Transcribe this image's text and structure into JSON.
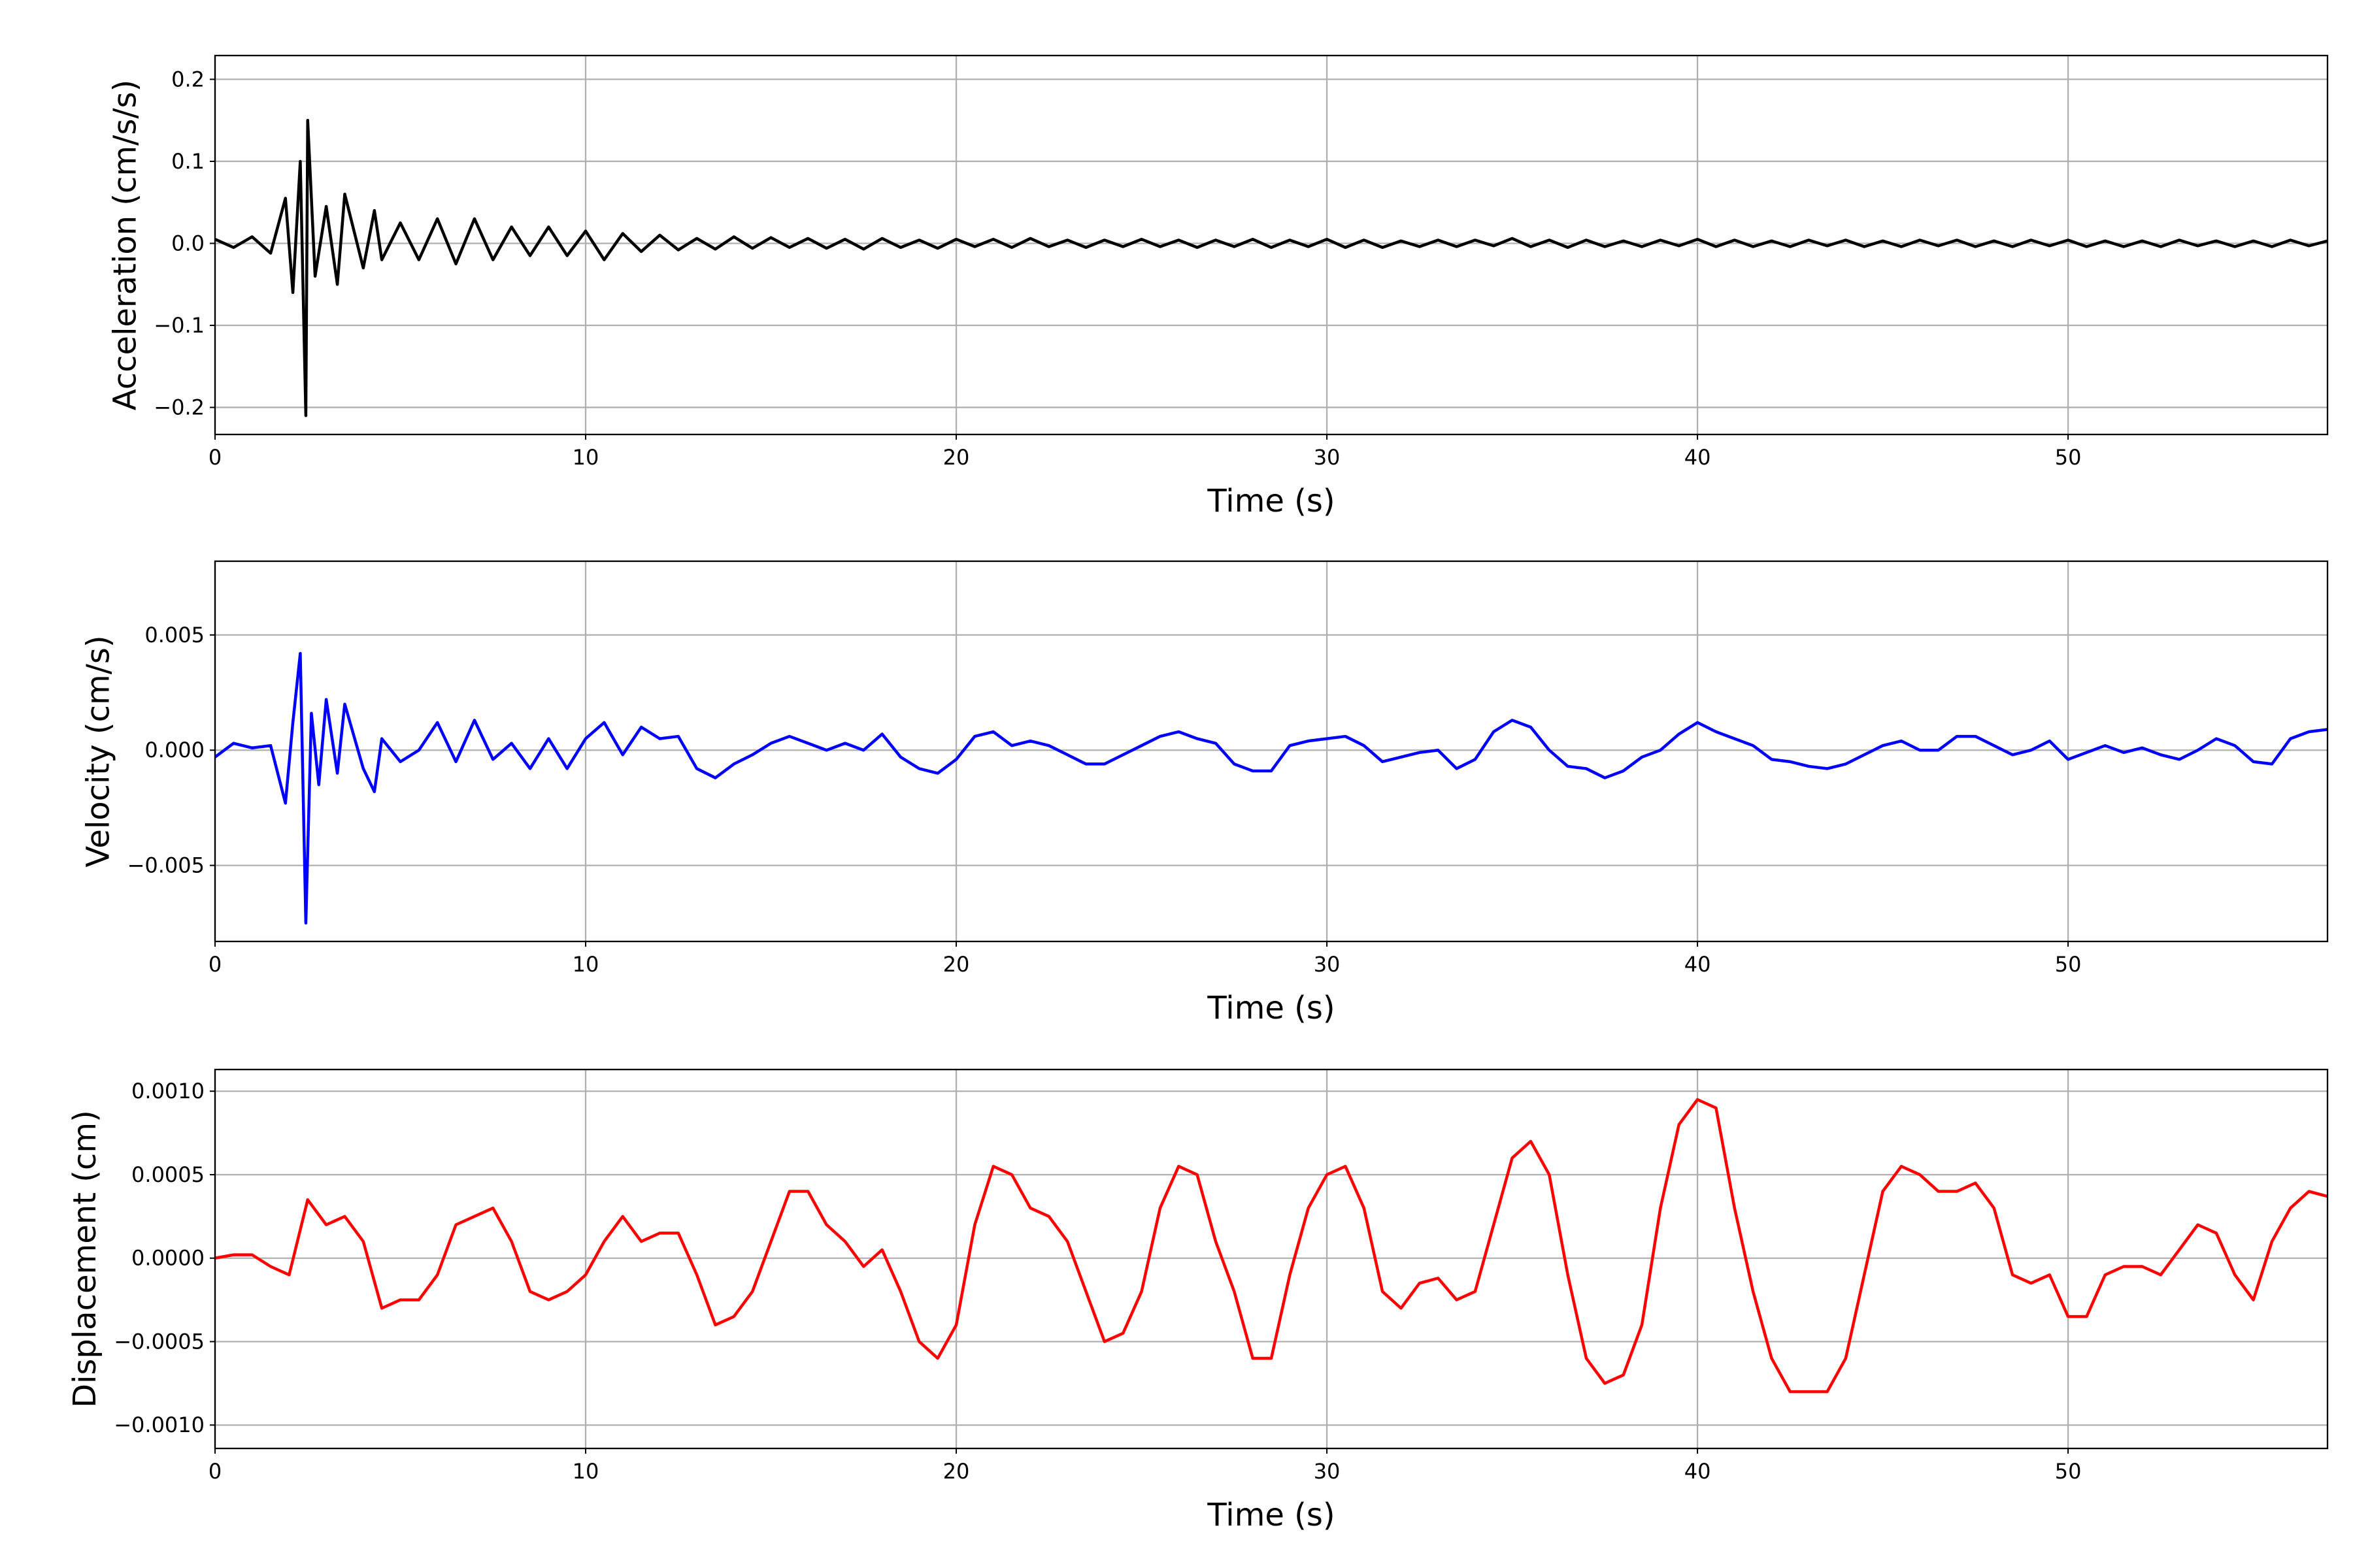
{
  "chart_data": [
    {
      "type": "line",
      "xlabel": "Time (s)",
      "ylabel": "Acceleration (cm/s/s)",
      "color": "#000000",
      "grid": true,
      "xlim": [
        0,
        57
      ],
      "xticks": [
        0,
        10,
        20,
        30,
        40,
        50
      ],
      "ylim": [
        -0.233,
        0.229
      ],
      "yticks": [
        {
          "value": -0.2,
          "label": "−0.2"
        },
        {
          "value": -0.1,
          "label": "−0.1"
        },
        {
          "value": 0,
          "label": "0.0"
        },
        0.1,
        0.2
      ],
      "x": [
        0,
        0.5,
        1,
        1.5,
        1.9,
        2.1,
        2.3,
        2.45,
        2.5,
        2.7,
        3.0,
        3.3,
        3.5,
        4,
        4.3,
        4.5,
        5,
        5.5,
        6,
        6.5,
        7,
        7.5,
        8,
        8.5,
        9,
        9.5,
        10,
        10.5,
        11,
        11.5,
        12,
        12.5,
        13,
        13.5,
        14,
        14.5,
        15,
        15.5,
        16,
        16.5,
        17,
        17.5,
        18,
        18.5,
        19,
        19.5,
        20,
        20.5,
        21,
        21.5,
        22,
        22.5,
        23,
        23.5,
        24,
        24.5,
        25,
        25.5,
        26,
        26.5,
        27,
        27.5,
        28,
        28.5,
        29,
        29.5,
        30,
        30.5,
        31,
        31.5,
        32,
        32.5,
        33,
        33.5,
        34,
        34.5,
        35,
        35.5,
        36,
        36.5,
        37,
        37.5,
        38,
        38.5,
        39,
        39.5,
        40,
        40.5,
        41,
        41.5,
        42,
        42.5,
        43,
        43.5,
        44,
        44.5,
        45,
        45.5,
        46,
        46.5,
        47,
        47.5,
        48,
        48.5,
        49,
        49.5,
        50,
        50.5,
        51,
        51.5,
        52,
        52.5,
        53,
        53.5,
        54,
        54.5,
        55,
        55.5,
        56,
        56.5,
        57
      ],
      "values": [
        0.005,
        -0.005,
        0.008,
        -0.012,
        0.055,
        -0.06,
        0.1,
        -0.21,
        0.15,
        -0.04,
        0.045,
        -0.05,
        0.06,
        -0.03,
        0.04,
        -0.02,
        0.025,
        -0.02,
        0.03,
        -0.025,
        0.03,
        -0.02,
        0.02,
        -0.015,
        0.02,
        -0.015,
        0.015,
        -0.02,
        0.012,
        -0.01,
        0.01,
        -0.008,
        0.006,
        -0.007,
        0.008,
        -0.006,
        0.007,
        -0.005,
        0.006,
        -0.006,
        0.005,
        -0.007,
        0.006,
        -0.005,
        0.004,
        -0.006,
        0.005,
        -0.004,
        0.005,
        -0.005,
        0.006,
        -0.004,
        0.004,
        -0.005,
        0.004,
        -0.004,
        0.005,
        -0.004,
        0.004,
        -0.005,
        0.004,
        -0.004,
        0.005,
        -0.005,
        0.004,
        -0.004,
        0.005,
        -0.005,
        0.004,
        -0.005,
        0.003,
        -0.004,
        0.004,
        -0.004,
        0.004,
        -0.003,
        0.006,
        -0.004,
        0.004,
        -0.005,
        0.004,
        -0.004,
        0.003,
        -0.004,
        0.004,
        -0.003,
        0.005,
        -0.004,
        0.004,
        -0.004,
        0.003,
        -0.004,
        0.004,
        -0.003,
        0.004,
        -0.004,
        0.003,
        -0.004,
        0.004,
        -0.003,
        0.004,
        -0.004,
        0.003,
        -0.004,
        0.004,
        -0.003,
        0.004,
        -0.004,
        0.003,
        -0.004,
        0.003,
        -0.004,
        0.004,
        -0.003,
        0.003,
        -0.004,
        0.003,
        -0.004,
        0.004,
        -0.003,
        0.003
      ]
    },
    {
      "type": "line",
      "xlabel": "Time (s)",
      "ylabel": "Velocity (cm/s)",
      "color": "#0000ff",
      "grid": true,
      "xlim": [
        0,
        57
      ],
      "xticks": [
        0,
        10,
        20,
        30,
        40,
        50
      ],
      "ylim": [
        -0.0083,
        0.0082
      ],
      "yticks": [
        {
          "value": -0.005,
          "label": "−0.005"
        },
        {
          "value": 0,
          "label": "0.000"
        },
        0.005
      ],
      "x": [
        0,
        0.5,
        1,
        1.5,
        1.9,
        2.1,
        2.3,
        2.45,
        2.6,
        2.8,
        3.0,
        3.3,
        3.5,
        4,
        4.3,
        4.5,
        5,
        5.5,
        6,
        6.5,
        7,
        7.5,
        8,
        8.5,
        9,
        9.5,
        10,
        10.5,
        11,
        11.5,
        12,
        12.5,
        13,
        13.5,
        14,
        14.5,
        15,
        15.5,
        16,
        16.5,
        17,
        17.5,
        18,
        18.5,
        19,
        19.5,
        20,
        20.5,
        21,
        21.5,
        22,
        22.5,
        23,
        23.5,
        24,
        24.5,
        25,
        25.5,
        26,
        26.5,
        27,
        27.5,
        28,
        28.5,
        29,
        29.5,
        30,
        30.5,
        31,
        31.5,
        32,
        32.5,
        33,
        33.5,
        34,
        34.5,
        35,
        35.5,
        36,
        36.5,
        37,
        37.5,
        38,
        38.5,
        39,
        39.5,
        40,
        40.5,
        41,
        41.5,
        42,
        42.5,
        43,
        43.5,
        44,
        44.5,
        45,
        45.5,
        46,
        46.5,
        47,
        47.5,
        48,
        48.5,
        49,
        49.5,
        50,
        50.5,
        51,
        51.5,
        52,
        52.5,
        53,
        53.5,
        54,
        54.5,
        55,
        55.5,
        56,
        56.5,
        57
      ],
      "values": [
        -0.0003,
        0.0003,
        0.0001,
        0.0002,
        -0.0023,
        0.0012,
        0.0042,
        -0.0075,
        0.0016,
        -0.0015,
        0.0022,
        -0.001,
        0.002,
        -0.0008,
        -0.0018,
        0.0005,
        -0.0005,
        0.0,
        0.0012,
        -0.0005,
        0.0013,
        -0.0004,
        0.0003,
        -0.0008,
        0.0005,
        -0.0008,
        0.0005,
        0.0012,
        -0.0002,
        0.001,
        0.0005,
        0.0006,
        -0.0008,
        -0.0012,
        -0.0006,
        -0.0002,
        0.0003,
        0.0006,
        0.0003,
        0.0,
        0.0003,
        0.0,
        0.0007,
        -0.0003,
        -0.0008,
        -0.001,
        -0.0004,
        0.0006,
        0.0008,
        0.0002,
        0.0004,
        0.0002,
        -0.0002,
        -0.0006,
        -0.0006,
        -0.0002,
        0.0002,
        0.0006,
        0.0008,
        0.0005,
        0.0003,
        -0.0006,
        -0.0009,
        -0.0009,
        0.0002,
        0.0004,
        0.0005,
        0.0006,
        0.0002,
        -0.0005,
        -0.0003,
        -0.0001,
        0.0,
        -0.0008,
        -0.0004,
        0.0008,
        0.0013,
        0.001,
        0.0,
        -0.0007,
        -0.0008,
        -0.0012,
        -0.0009,
        -0.0003,
        0.0,
        0.0007,
        0.0012,
        0.0008,
        0.0005,
        0.0002,
        -0.0004,
        -0.0005,
        -0.0007,
        -0.0008,
        -0.0006,
        -0.0002,
        0.0002,
        0.0004,
        0.0,
        0.0,
        0.0006,
        0.0006,
        0.0002,
        -0.0002,
        0.0,
        0.0004,
        -0.0004,
        -0.0001,
        0.0002,
        -0.0001,
        0.0001,
        -0.0002,
        -0.0004,
        0.0,
        0.0005,
        0.0002,
        -0.0005,
        -0.0006,
        0.0005,
        0.0008,
        0.0009
      ]
    },
    {
      "type": "line",
      "xlabel": "Time (s)",
      "ylabel": "Displacement (cm)",
      "color": "#ff0000",
      "grid": true,
      "xlim": [
        0,
        57
      ],
      "xticks": [
        0,
        10,
        20,
        30,
        40,
        50
      ],
      "ylim": [
        -0.00114,
        0.00113
      ],
      "yticks": [
        {
          "value": -0.001,
          "label": "−0.0010"
        },
        {
          "value": -0.0005,
          "label": "−0.0005"
        },
        {
          "value": 0,
          "label": "0.0000"
        },
        {
          "value": 0.0005,
          "label": "0.0005"
        },
        {
          "value": 0.001,
          "label": "0.0010"
        }
      ],
      "x": [
        0,
        0.5,
        1,
        1.5,
        2,
        2.5,
        3,
        3.5,
        4,
        4.5,
        5,
        5.5,
        6,
        6.5,
        7,
        7.5,
        8,
        8.5,
        9,
        9.5,
        10,
        10.5,
        11,
        11.5,
        12,
        12.5,
        13,
        13.5,
        14,
        14.5,
        15,
        15.5,
        16,
        16.5,
        17,
        17.5,
        18,
        18.5,
        19,
        19.5,
        20,
        20.5,
        21,
        21.5,
        22,
        22.5,
        23,
        23.5,
        24,
        24.5,
        25,
        25.5,
        26,
        26.5,
        27,
        27.5,
        28,
        28.5,
        29,
        29.5,
        30,
        30.5,
        31,
        31.5,
        32,
        32.5,
        33,
        33.5,
        34,
        34.5,
        35,
        35.5,
        36,
        36.5,
        37,
        37.5,
        38,
        38.5,
        39,
        39.5,
        40,
        40.5,
        41,
        41.5,
        42,
        42.5,
        43,
        43.5,
        44,
        44.5,
        45,
        45.5,
        46,
        46.5,
        47,
        47.5,
        48,
        48.5,
        49,
        49.5,
        50,
        50.5,
        51,
        51.5,
        52,
        52.5,
        53,
        53.5,
        54,
        54.5,
        55,
        55.5,
        56,
        56.5,
        57
      ],
      "values": [
        0,
        2e-05,
        2e-05,
        -5e-05,
        -0.0001,
        0.00035,
        0.0002,
        0.00025,
        0.0001,
        -0.0003,
        -0.00025,
        -0.00025,
        -0.0001,
        0.0002,
        0.00025,
        0.0003,
        0.0001,
        -0.0002,
        -0.00025,
        -0.0002,
        -0.0001,
        0.0001,
        0.00025,
        0.0001,
        0.00015,
        0.00015,
        -0.0001,
        -0.0004,
        -0.00035,
        -0.0002,
        0.0001,
        0.0004,
        0.0004,
        0.0002,
        0.0001,
        -5e-05,
        5e-05,
        -0.0002,
        -0.0005,
        -0.0006,
        -0.0004,
        0.0002,
        0.00055,
        0.0005,
        0.0003,
        0.00025,
        0.0001,
        -0.0002,
        -0.0005,
        -0.00045,
        -0.0002,
        0.0003,
        0.00055,
        0.0005,
        0.0001,
        -0.0002,
        -0.0006,
        -0.0006,
        -0.0001,
        0.0003,
        0.0005,
        0.00055,
        0.0003,
        -0.0002,
        -0.0003,
        -0.00015,
        -0.00012,
        -0.00025,
        -0.0002,
        0.0002,
        0.0006,
        0.0007,
        0.0005,
        -0.0001,
        -0.0006,
        -0.00075,
        -0.0007,
        -0.0004,
        0.0003,
        0.0008,
        0.00095,
        0.0009,
        0.0003,
        -0.0002,
        -0.0006,
        -0.0008,
        -0.0008,
        -0.0008,
        -0.0006,
        -0.0001,
        0.0004,
        0.00055,
        0.0005,
        0.0004,
        0.0004,
        0.00045,
        0.0003,
        -0.0001,
        -0.00015,
        -0.0001,
        -0.00035,
        -0.00035,
        -0.0001,
        -5e-05,
        -5e-05,
        -0.0001,
        5e-05,
        0.0002,
        0.00015,
        -0.0001,
        -0.00025,
        0.0001,
        0.0003,
        0.0004,
        0.00037
      ]
    }
  ]
}
